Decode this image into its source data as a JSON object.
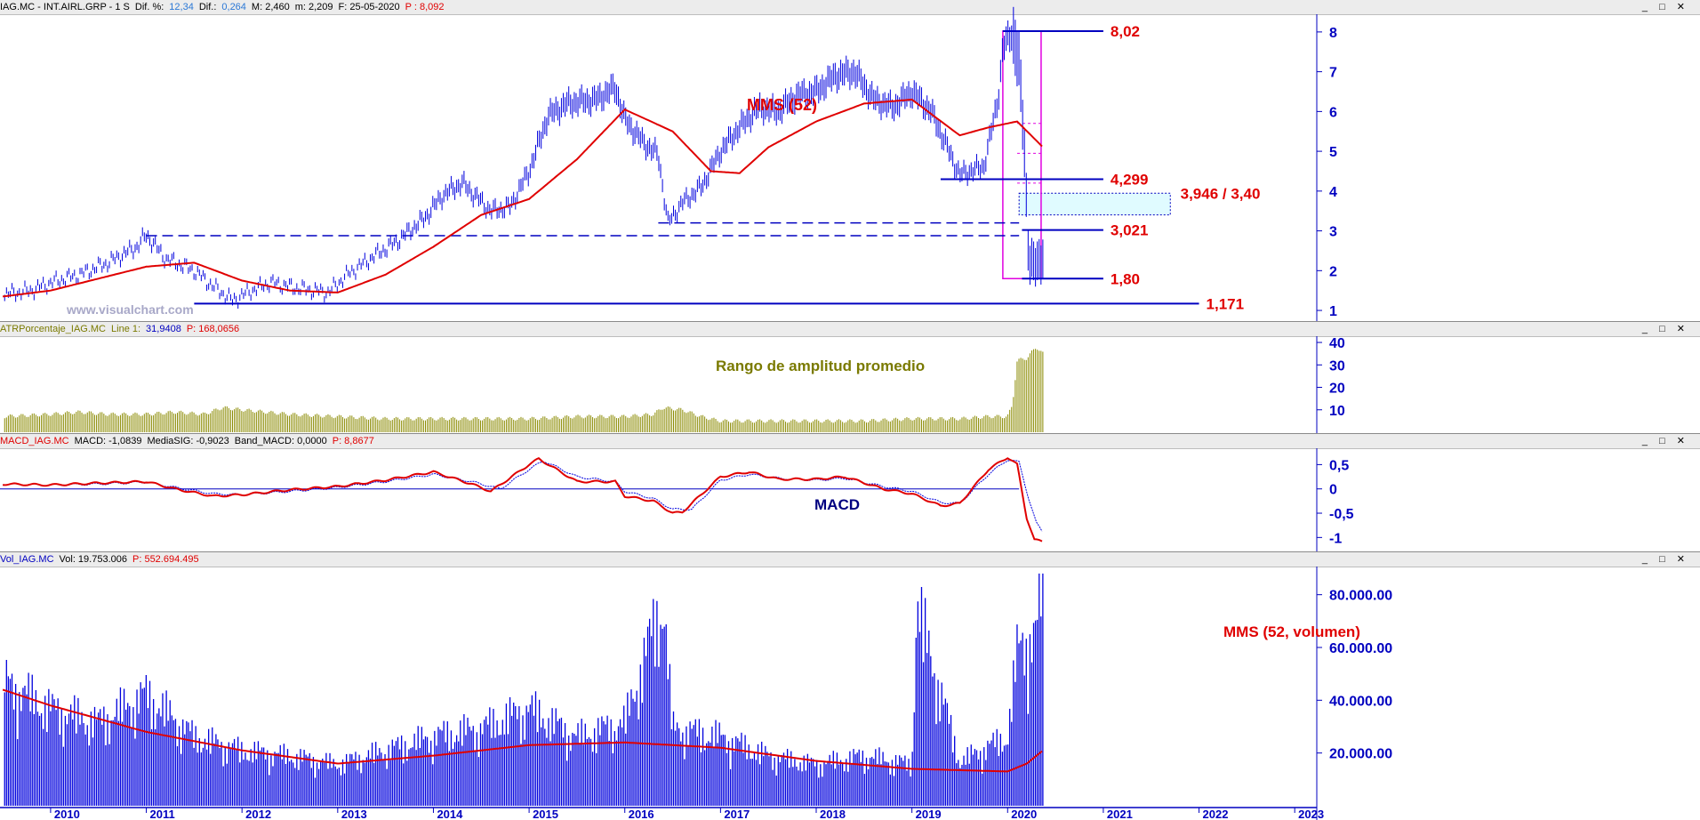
{
  "headers": {
    "price": {
      "parts": [
        {
          "text": "IAG.MC - INT.AIRL.GRP - 1 S",
          "color": "#000000"
        },
        {
          "text": "Dif. %:",
          "color": "#000000"
        },
        {
          "text": "12,34",
          "color": "#2b78d6"
        },
        {
          "text": "Dif.:",
          "color": "#000000"
        },
        {
          "text": "0,264",
          "color": "#2b78d6"
        },
        {
          "text": "M: 2,460",
          "color": "#000000"
        },
        {
          "text": "m: 2,209",
          "color": "#000000"
        },
        {
          "text": "F: 25-05-2020",
          "color": "#000000"
        },
        {
          "text": "P : 8,092",
          "color": "#e00000"
        }
      ]
    },
    "atr": {
      "parts": [
        {
          "text": "ATRPorcentaje_IAG.MC",
          "color": "#7a7a00"
        },
        {
          "text": "Line 1:",
          "color": "#7a7a00"
        },
        {
          "text": "31,9408",
          "color": "#0000c0"
        },
        {
          "text": "P: 168,0656",
          "color": "#e00000"
        }
      ]
    },
    "macd": {
      "parts": [
        {
          "text": "MACD_IAG.MC",
          "color": "#e00000"
        },
        {
          "text": "MACD: -1,0839",
          "color": "#000000"
        },
        {
          "text": "MediaSIG: -0,9023",
          "color": "#000000"
        },
        {
          "text": "Band_MACD: 0,0000",
          "color": "#000000"
        },
        {
          "text": "P: 8,8677",
          "color": "#e00000"
        }
      ]
    },
    "vol": {
      "parts": [
        {
          "text": "Vol_IAG.MC",
          "color": "#0000c0"
        },
        {
          "text": "Vol: 19.753.006",
          "color": "#000000"
        },
        {
          "text": "P: 552.694.495",
          "color": "#e00000"
        }
      ]
    }
  },
  "window_controls": "_ □ ✕",
  "watermark": "www.visualchart.com",
  "annotations": {
    "mms": "MMS (52)",
    "atr": "Rango de amplitud promedio",
    "macd": "MACD",
    "vol": "MMS (52, volumen)"
  },
  "levels": [
    {
      "value": 8.02,
      "label": "8,02"
    },
    {
      "value": 4.299,
      "label": "4,299"
    },
    {
      "value": 3.946,
      "label": "3,946 / 3,40"
    },
    {
      "value": 3.021,
      "label": "3,021"
    },
    {
      "value": 1.8,
      "label": "1,80"
    },
    {
      "value": 1.171,
      "label": "1,171"
    }
  ],
  "colors": {
    "price": "#0000dd",
    "average": "#e00000",
    "atr": "#8a8a00",
    "macd_signal": "#0000dd",
    "volume": "#0000dd",
    "gap_fill": "#e0fbff",
    "highlight": "#e000e0"
  },
  "chart_data": [
    {
      "type": "line",
      "name": "price",
      "x_labels": [
        "2010",
        "2011",
        "2012",
        "2013",
        "2014",
        "2015",
        "2016",
        "2017",
        "2018",
        "2019",
        "2020",
        "2021",
        "2022",
        "2023"
      ],
      "ylim": [
        0.8,
        8.4
      ],
      "yticks": [
        1,
        2,
        3,
        4,
        5,
        6,
        7,
        8
      ],
      "series": [
        {
          "x": [
            2009.5,
            2009.8,
            2010.0,
            2010.3,
            2010.6,
            2010.9,
            2011.0,
            2011.2,
            2011.5,
            2011.7,
            2011.9,
            2012.1,
            2012.3,
            2012.6,
            2012.9,
            2013.1,
            2013.4,
            2013.6,
            2013.9,
            2014.1,
            2014.3,
            2014.6,
            2014.8,
            2015.0,
            2015.2,
            2015.4,
            2015.7,
            2015.9,
            2016.0,
            2016.2,
            2016.35,
            2016.45,
            2016.6,
            2016.8,
            2017.0,
            2017.2,
            2017.4,
            2017.6,
            2017.8,
            2018.0,
            2018.2,
            2018.4,
            2018.6,
            2018.8,
            2019.0,
            2019.2,
            2019.35,
            2019.5,
            2019.6,
            2019.75,
            2019.9,
            2019.95,
            2020.05,
            2020.12,
            2020.18,
            2020.22,
            2020.3,
            2020.37
          ],
          "values": [
            1.4,
            1.5,
            1.7,
            1.9,
            2.2,
            2.6,
            2.9,
            2.3,
            2.0,
            1.6,
            1.25,
            1.5,
            1.7,
            1.55,
            1.45,
            1.9,
            2.4,
            2.7,
            3.3,
            3.9,
            4.2,
            3.5,
            3.6,
            4.5,
            5.9,
            6.2,
            6.3,
            6.6,
            5.8,
            5.2,
            4.9,
            3.2,
            3.7,
            4.1,
            5.0,
            5.6,
            6.1,
            6.0,
            6.4,
            6.5,
            6.9,
            7.0,
            6.3,
            6.1,
            6.5,
            6.0,
            5.2,
            4.4,
            4.5,
            4.6,
            6.3,
            7.6,
            8.0,
            7.2,
            4.8,
            2.3,
            2.1,
            2.4
          ]
        },
        {
          "name": "MMS (52)",
          "x": [
            2009.5,
            2010.0,
            2010.5,
            2011.0,
            2011.5,
            2012.0,
            2012.5,
            2013.0,
            2013.5,
            2014.0,
            2014.5,
            2015.0,
            2015.5,
            2016.0,
            2016.5,
            2016.9,
            2017.2,
            2017.5,
            2018.0,
            2018.5,
            2019.0,
            2019.5,
            2019.8,
            2020.1,
            2020.37
          ],
          "values": [
            1.35,
            1.5,
            1.8,
            2.1,
            2.2,
            1.75,
            1.5,
            1.45,
            1.9,
            2.6,
            3.4,
            3.8,
            4.8,
            6.05,
            5.5,
            4.5,
            4.45,
            5.1,
            5.75,
            6.2,
            6.3,
            5.4,
            5.6,
            5.75,
            5.1
          ]
        }
      ]
    },
    {
      "type": "bar",
      "name": "ATR %",
      "ylim": [
        0,
        42
      ],
      "yticks": [
        10,
        20,
        30,
        40
      ],
      "x": [
        2009.5,
        2010.0,
        2010.3,
        2010.6,
        2011.0,
        2011.3,
        2011.6,
        2011.8,
        2012.0,
        2012.5,
        2013.0,
        2013.5,
        2014.0,
        2014.5,
        2015.0,
        2015.5,
        2016.0,
        2016.3,
        2016.4,
        2016.6,
        2016.8,
        2017.0,
        2017.5,
        2018.0,
        2018.5,
        2019.0,
        2019.5,
        2019.8,
        2020.0,
        2020.05,
        2020.1,
        2020.2,
        2020.3,
        2020.37
      ],
      "values": [
        7,
        8,
        9,
        8,
        8,
        9,
        8,
        11,
        10,
        8,
        7,
        6,
        6,
        6,
        6,
        7,
        7,
        8,
        11,
        10,
        7,
        5,
        5,
        5,
        5,
        6,
        6,
        7,
        7,
        12,
        32,
        33,
        38,
        35
      ]
    },
    {
      "type": "line",
      "name": "MACD",
      "ylim": [
        -1.25,
        0.8
      ],
      "yticks": [
        0.5,
        0,
        -0.5,
        -1
      ],
      "ytick_labels": [
        "0,5",
        "0",
        "-0,5",
        "-1"
      ],
      "series": [
        {
          "name": "MACD",
          "x": [
            2009.5,
            2010.0,
            2010.5,
            2011.0,
            2011.3,
            2011.7,
            2012.0,
            2012.5,
            2013.0,
            2013.5,
            2014.0,
            2014.4,
            2014.6,
            2015.0,
            2015.1,
            2015.5,
            2015.9,
            2016.0,
            2016.3,
            2016.5,
            2016.6,
            2017.0,
            2017.3,
            2017.6,
            2018.0,
            2018.3,
            2018.7,
            2019.0,
            2019.3,
            2019.5,
            2019.8,
            2020.0,
            2020.1,
            2020.2,
            2020.28,
            2020.37
          ],
          "values": [
            0.1,
            0.08,
            0.12,
            0.15,
            0.0,
            -0.15,
            -0.12,
            -0.02,
            0.05,
            0.18,
            0.35,
            0.1,
            -0.05,
            0.5,
            0.62,
            0.15,
            0.15,
            -0.15,
            -0.25,
            -0.5,
            -0.48,
            0.25,
            0.35,
            0.2,
            0.2,
            0.25,
            0.0,
            -0.1,
            -0.35,
            -0.3,
            0.4,
            0.65,
            0.5,
            -0.6,
            -1.05,
            -1.08
          ]
        },
        {
          "name": "MediaSIG",
          "x": [
            2009.5,
            2010.0,
            2010.5,
            2011.0,
            2011.3,
            2011.7,
            2012.0,
            2012.5,
            2013.0,
            2013.5,
            2014.0,
            2014.4,
            2014.7,
            2015.0,
            2015.15,
            2015.5,
            2015.9,
            2016.0,
            2016.3,
            2016.5,
            2016.7,
            2017.0,
            2017.3,
            2017.6,
            2018.0,
            2018.3,
            2018.7,
            2019.0,
            2019.3,
            2019.5,
            2019.8,
            2020.0,
            2020.12,
            2020.22,
            2020.3,
            2020.37
          ],
          "values": [
            0.1,
            0.08,
            0.1,
            0.14,
            0.03,
            -0.1,
            -0.12,
            -0.05,
            0.03,
            0.15,
            0.3,
            0.15,
            0.0,
            0.4,
            0.58,
            0.25,
            0.15,
            -0.05,
            -0.2,
            -0.42,
            -0.42,
            0.18,
            0.3,
            0.22,
            0.18,
            0.22,
            0.05,
            -0.05,
            -0.28,
            -0.3,
            0.3,
            0.6,
            0.55,
            -0.2,
            -0.7,
            -0.9
          ]
        }
      ]
    },
    {
      "type": "bar",
      "name": "Volumen",
      "ylim": [
        0,
        90000
      ],
      "yticks": [
        20000,
        40000,
        60000,
        80000
      ],
      "ytick_labels": [
        "20.000.00",
        "40.000.00",
        "60.000.00",
        "80.000.00"
      ],
      "x": [
        2009.5,
        2010.0,
        2010.5,
        2011.0,
        2011.5,
        2012.0,
        2012.5,
        2013.0,
        2013.5,
        2014.0,
        2014.5,
        2015.0,
        2015.5,
        2016.0,
        2016.4,
        2016.5,
        2017.0,
        2017.5,
        2018.0,
        2018.5,
        2019.0,
        2019.05,
        2019.5,
        2020.0,
        2020.1,
        2020.2,
        2020.3,
        2020.37
      ],
      "values": [
        45000,
        35000,
        30000,
        40000,
        25000,
        20000,
        18000,
        15000,
        20000,
        25000,
        28000,
        35000,
        25000,
        30000,
        75000,
        28000,
        25000,
        18000,
        15000,
        18000,
        15000,
        72000,
        16000,
        25000,
        55000,
        60000,
        62000,
        85000
      ],
      "average": {
        "name": "MMS (52, volumen)",
        "x": [
          2009.5,
          2010.0,
          2011.0,
          2012.0,
          2013.0,
          2014.0,
          2015.0,
          2016.0,
          2017.0,
          2018.0,
          2019.0,
          2020.0,
          2020.2,
          2020.37
        ],
        "values": [
          44000,
          38000,
          28000,
          21000,
          16000,
          19000,
          23000,
          24000,
          22000,
          17000,
          14000,
          13000,
          16000,
          21000
        ]
      }
    }
  ]
}
